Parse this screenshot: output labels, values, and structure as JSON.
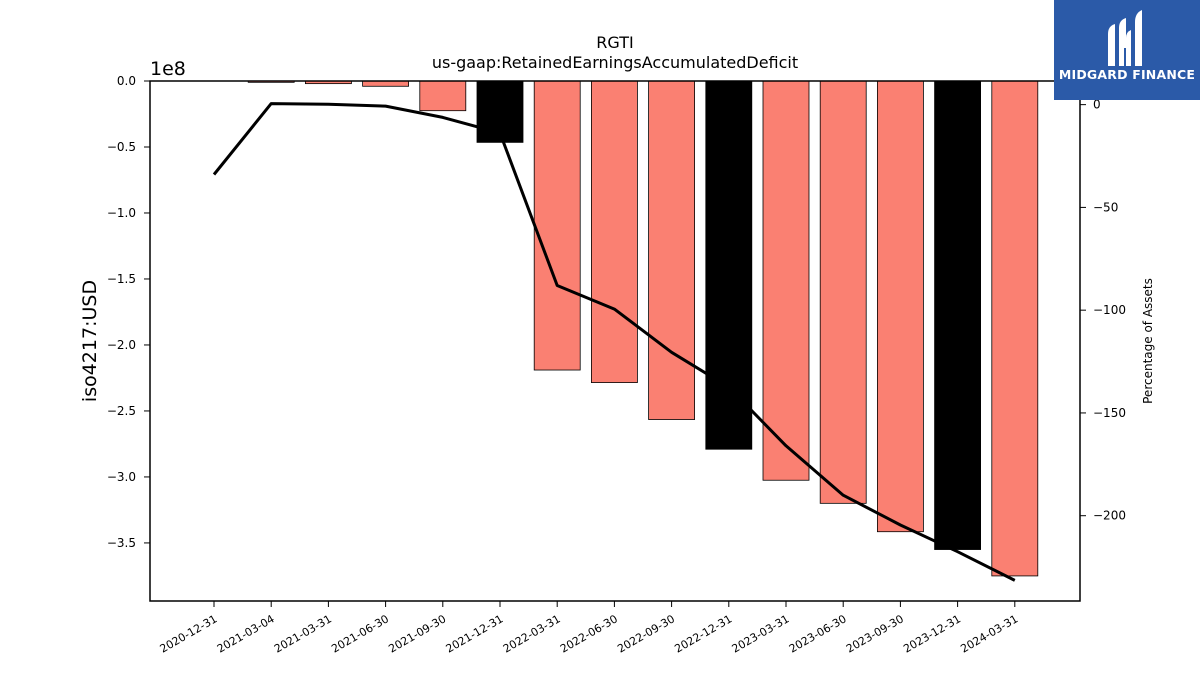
{
  "chart_data": {
    "type": "bar",
    "title": "RGTI",
    "subtitle": "us-gaap:RetainedEarningsAccumulatedDeficit",
    "ylabel": "iso4217:USD",
    "y_offset_label": "1e8",
    "y2label": "Percentage of Assets",
    "categories": [
      "2020-12-31",
      "2021-03-04",
      "2021-03-31",
      "2021-06-30",
      "2021-09-30",
      "2021-12-31",
      "2022-03-31",
      "2022-06-30",
      "2022-09-30",
      "2022-12-31",
      "2023-03-31",
      "2023-06-30",
      "2023-09-30",
      "2023-12-31",
      "2024-03-31"
    ],
    "values": [
      0,
      -1000000,
      -2000000,
      -4000000,
      -22500000,
      -46500000,
      -219000000,
      -228500000,
      -256500000,
      -279000000,
      -302500000,
      -320000000,
      -341500000,
      -355000000,
      -375000000
    ],
    "bar_colors": [
      "#fa8072",
      "#fa8072",
      "#fa8072",
      "#fa8072",
      "#fa8072",
      "#000000",
      "#fa8072",
      "#fa8072",
      "#fa8072",
      "#000000",
      "#fa8072",
      "#fa8072",
      "#fa8072",
      "#000000",
      "#fa8072"
    ],
    "line": {
      "name": "Percentage of Assets",
      "axis": "right",
      "values": [
        -34,
        0.5,
        0.2,
        -0.7,
        -6.2,
        -13.8,
        -88,
        -99.5,
        -120.5,
        -137.5,
        -166,
        -190,
        -204.5,
        -217.5,
        -231.5
      ],
      "color": "#000000"
    },
    "ylim": [
      -394000000,
      0
    ],
    "y2lim": [
      -241.5,
      11.5
    ],
    "yticks": [
      0.0,
      -0.5,
      -1.0,
      -1.5,
      -2.0,
      -2.5,
      -3.0,
      -3.5
    ],
    "y2ticks": [
      0,
      -50,
      -100,
      -150,
      -200
    ],
    "grid": false
  },
  "logo": {
    "text": "MIDGARD FINANCE",
    "background": "#2b5aa8"
  }
}
